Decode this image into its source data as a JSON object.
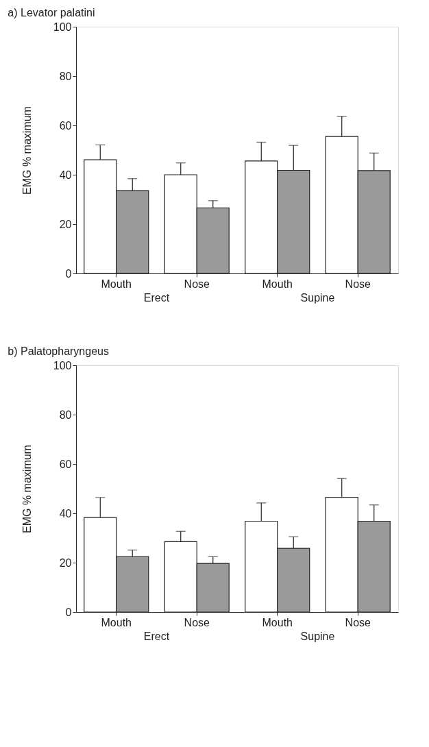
{
  "chart_data": [
    {
      "type": "bar",
      "title": "a)  Levator palatini",
      "ylabel": "EMG  % maximum",
      "categories": [
        "Mouth",
        "Nose",
        "Mouth",
        "Nose"
      ],
      "annotations": [
        "Erect",
        "Supine"
      ],
      "series": [
        {
          "color": "#ffffff",
          "values": [
            46.1,
            40,
            45.6,
            55.5
          ],
          "errors": [
            [
              46.1,
              52.1
            ],
            [
              40,
              44.8
            ],
            [
              45.6,
              53.2
            ],
            [
              55.5,
              63.7
            ]
          ]
        },
        {
          "color": "#9a9a9a",
          "values": [
            33.6,
            26.6,
            41.8,
            41.7
          ],
          "errors": [
            [
              33.6,
              38.4
            ],
            [
              26.6,
              29.5
            ],
            [
              41.8,
              51.9
            ],
            [
              41.7,
              48.8
            ]
          ]
        }
      ],
      "ylim": [
        0,
        100
      ],
      "yticks": [
        0,
        20,
        40,
        60,
        80,
        100
      ],
      "grid": false
    },
    {
      "type": "bar",
      "title": "b)  Palatopharyngeus",
      "ylabel": "EMG  % maximum",
      "categories": [
        "Mouth",
        "Nose",
        "Mouth",
        "Nose"
      ],
      "annotations": [
        "Erect",
        "Supine"
      ],
      "series": [
        {
          "color": "#ffffff",
          "values": [
            38.3,
            28.5,
            36.8,
            46.5
          ],
          "errors": [
            [
              38.3,
              46.4
            ],
            [
              28.5,
              32.7
            ],
            [
              36.8,
              44.2
            ],
            [
              46.5,
              54.1
            ]
          ]
        },
        {
          "color": "#9a9a9a",
          "values": [
            22.5,
            19.7,
            25.8,
            36.8
          ],
          "errors": [
            [
              22.5,
              25.1
            ],
            [
              19.7,
              22.4
            ],
            [
              25.8,
              30.5
            ],
            [
              36.8,
              43.4
            ]
          ]
        }
      ],
      "ylim": [
        0,
        100
      ],
      "yticks": [
        0,
        20,
        40,
        60,
        80,
        100
      ],
      "grid": false
    }
  ]
}
